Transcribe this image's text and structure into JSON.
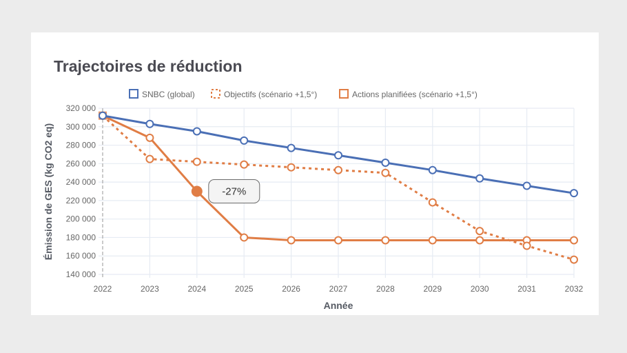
{
  "card": {
    "title": "Trajectoires de réduction"
  },
  "chart_data": {
    "type": "line",
    "title": "Trajectoires de réduction",
    "xlabel": "Année",
    "ylabel": "Émission de GES (kg CO2 eq)",
    "x": [
      "2022",
      "2023",
      "2024",
      "2025",
      "2026",
      "2027",
      "2028",
      "2029",
      "2030",
      "2031",
      "2032"
    ],
    "ylim": [
      140000,
      320000
    ],
    "yticks": [
      140000,
      160000,
      180000,
      200000,
      220000,
      240000,
      260000,
      280000,
      300000,
      320000
    ],
    "ytick_labels": [
      "140 000",
      "160 000",
      "180 000",
      "200 000",
      "220 000",
      "240 000",
      "260 000",
      "280 000",
      "300 000",
      "320 000"
    ],
    "grid": true,
    "legend_position": "top",
    "series": [
      {
        "name": "SNBC (global)",
        "color": "#4a6fb5",
        "style": "solid",
        "values": [
          312000,
          303000,
          295000,
          285000,
          277000,
          269000,
          261000,
          253000,
          244000,
          236000,
          228000
        ]
      },
      {
        "name": "Objectifs (scénario +1,5°)",
        "color": "#e07d45",
        "style": "dotted",
        "values": [
          312000,
          265000,
          262000,
          259000,
          256000,
          253000,
          250000,
          218000,
          187000,
          171000,
          156000
        ]
      },
      {
        "name": "Actions planifiées (scénario +1,5°)",
        "color": "#e07d45",
        "style": "solid",
        "values": [
          312000,
          288000,
          230000,
          180000,
          177000,
          177000,
          177000,
          177000,
          177000,
          177000,
          177000
        ]
      }
    ],
    "annotations": [
      {
        "series": "Actions planifiées (scénario +1,5°)",
        "x": "2024",
        "text": "-27%",
        "highlighted": true
      }
    ]
  }
}
